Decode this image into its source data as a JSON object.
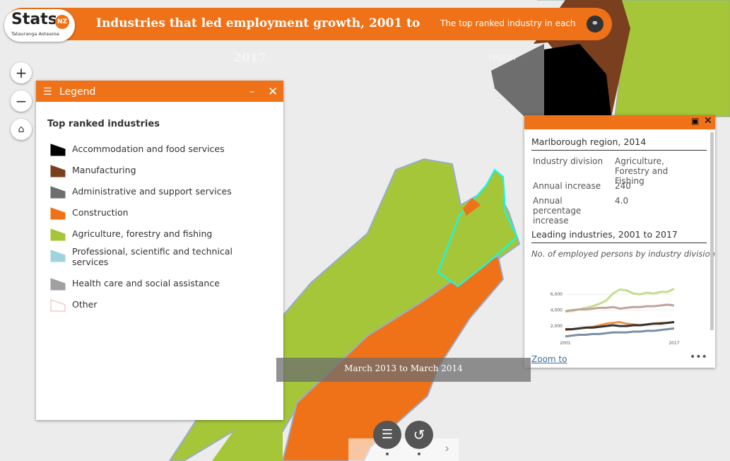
{
  "header": {
    "logo_text": "Stats",
    "logo_badge": "NZ",
    "logo_sub": "Tatauranga Aotearoa",
    "title": "Industries that led employment growth, 2001 to",
    "title_cont": "2017",
    "subtitle": "The top ranked industry in each",
    "subtitle_cont": "region"
  },
  "legend": {
    "title": "Legend",
    "heading": "Top ranked industries",
    "items": [
      {
        "label": "Accommodation and food services",
        "color": "#000000"
      },
      {
        "label": "Manufacturing",
        "color": "#7a3f1e"
      },
      {
        "label": "Administrative and support services",
        "color": "#6e6e6e"
      },
      {
        "label": "Construction",
        "color": "#ef7218"
      },
      {
        "label": "Agriculture, forestry and fishing",
        "color": "#a5c639"
      },
      {
        "label": "Professional, scientific and technical services",
        "color": "#9fd3dc"
      },
      {
        "label": "Health care and social assistance",
        "color": "#a0a0a0"
      },
      {
        "label": "Other",
        "color": "#ffffff"
      }
    ]
  },
  "popup": {
    "title": "Marlborough region, 2014",
    "fields": [
      {
        "label": "Industry division",
        "value": "Agriculture, Forestry and Fishing"
      },
      {
        "label": "Annual increase",
        "value": 240
      },
      {
        "label": "Annual percentage increase",
        "value": "4.0"
      }
    ],
    "chart_title": "Leading industries, 2001 to 2017",
    "chart_subtitle": "No. of employed persons by industry division",
    "chart": {
      "type": "line",
      "categories": [
        "2001",
        null,
        null,
        null,
        null,
        null,
        null,
        null,
        null,
        null,
        null,
        null,
        null,
        null,
        null,
        null,
        "2017"
      ],
      "ylim": [
        500,
        7000
      ],
      "yticks": [
        {
          "value": 2000,
          "label": "2,000"
        },
        {
          "value": 4000,
          "label": "4,000"
        },
        {
          "value": 6000,
          "label": "6,000"
        }
      ],
      "series": [
        {
          "color": "#c4de8c",
          "values": [
            3800,
            3900,
            4100,
            4300,
            4500,
            4800,
            5200,
            6100,
            6600,
            6500,
            6100,
            6000,
            6200,
            6100,
            6300,
            6300,
            6700
          ]
        },
        {
          "color": "#bfa49a",
          "values": [
            3900,
            4000,
            4100,
            4100,
            4200,
            4300,
            4300,
            4400,
            4200,
            4300,
            4400,
            4400,
            4500,
            4500,
            4600,
            4700,
            4600
          ]
        },
        {
          "color": "#f0924a",
          "values": [
            1500,
            1600,
            1700,
            1800,
            1900,
            2100,
            2300,
            2400,
            2500,
            2300,
            2200,
            2100,
            2200,
            2300,
            2400,
            2400,
            2500
          ]
        },
        {
          "color": "#333333",
          "values": [
            1600,
            1600,
            1700,
            1800,
            1800,
            1900,
            2000,
            2100,
            2000,
            2000,
            2100,
            2100,
            2200,
            2300,
            2300,
            2400,
            2500
          ]
        },
        {
          "color": "#7d8fa3",
          "values": [
            700,
            800,
            900,
            900,
            1000,
            1000,
            1100,
            1200,
            1200,
            1200,
            1300,
            1300,
            1400,
            1400,
            1500,
            1600,
            1700
          ]
        }
      ]
    },
    "zoom": "Zoom to"
  },
  "time_label": "March 2013 to March 2014"
}
